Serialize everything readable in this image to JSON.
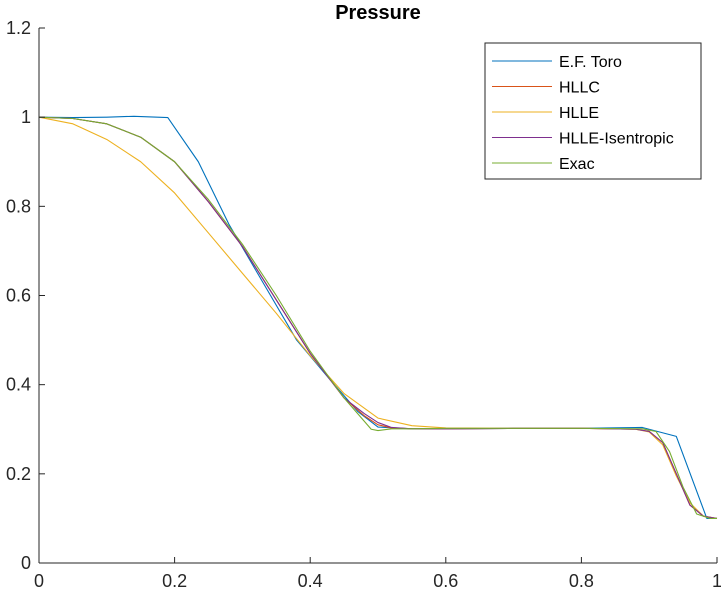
{
  "chart_data": {
    "type": "line",
    "title": "Pressure",
    "xlabel": "",
    "ylabel": "",
    "xlim": [
      0,
      1
    ],
    "ylim": [
      0,
      1.2
    ],
    "xticks": [
      0,
      0.2,
      0.4,
      0.6,
      0.8,
      1
    ],
    "xtick_labels": [
      "0",
      "0.2",
      "0.4",
      "0.6",
      "0.8",
      "1"
    ],
    "yticks": [
      0,
      0.2,
      0.4,
      0.6,
      0.8,
      1,
      1.2
    ],
    "ytick_labels": [
      "0",
      "0.2",
      "0.4",
      "0.6",
      "0.8",
      "1",
      "1.2"
    ],
    "grid": false,
    "legend_position": "top-right",
    "series": [
      {
        "name": "E.F. Toro",
        "color": "#0072BD",
        "x": [
          0,
          0.05,
          0.1,
          0.14,
          0.19,
          0.235,
          0.28,
          0.33,
          0.38,
          0.43,
          0.47,
          0.5,
          0.55,
          0.6,
          0.7,
          0.8,
          0.89,
          0.94,
          0.985,
          1.0
        ],
        "y": [
          1.0,
          0.999,
          1.0,
          1.002,
          0.999,
          0.9,
          0.76,
          0.63,
          0.5,
          0.41,
          0.34,
          0.305,
          0.301,
          0.301,
          0.302,
          0.302,
          0.304,
          0.284,
          0.1,
          0.1
        ]
      },
      {
        "name": "HLLC",
        "color": "#D95319",
        "x": [
          0,
          0.05,
          0.1,
          0.15,
          0.2,
          0.25,
          0.3,
          0.35,
          0.4,
          0.45,
          0.48,
          0.5,
          0.52,
          0.55,
          0.6,
          0.7,
          0.8,
          0.88,
          0.9,
          0.92,
          0.94,
          0.96,
          0.98,
          1.0
        ],
        "y": [
          1.0,
          0.997,
          0.985,
          0.955,
          0.9,
          0.81,
          0.71,
          0.59,
          0.47,
          0.37,
          0.33,
          0.31,
          0.303,
          0.301,
          0.301,
          0.302,
          0.302,
          0.3,
          0.295,
          0.27,
          0.2,
          0.13,
          0.105,
          0.1
        ]
      },
      {
        "name": "HLLE",
        "color": "#EDB120",
        "x": [
          0,
          0.05,
          0.1,
          0.15,
          0.2,
          0.25,
          0.3,
          0.35,
          0.4,
          0.45,
          0.5,
          0.55,
          0.6,
          0.7,
          0.8,
          0.88,
          0.9,
          0.92,
          0.94,
          0.96,
          0.98,
          1.0
        ],
        "y": [
          1.0,
          0.985,
          0.95,
          0.9,
          0.83,
          0.74,
          0.65,
          0.56,
          0.465,
          0.38,
          0.325,
          0.308,
          0.303,
          0.302,
          0.302,
          0.3,
          0.294,
          0.265,
          0.195,
          0.135,
          0.105,
          0.1
        ]
      },
      {
        "name": "HLLE-Isentropic",
        "color": "#7E2F8E",
        "x": [
          0,
          0.05,
          0.1,
          0.15,
          0.2,
          0.25,
          0.3,
          0.35,
          0.4,
          0.45,
          0.48,
          0.5,
          0.52,
          0.55,
          0.6,
          0.7,
          0.8,
          0.88,
          0.9,
          0.92,
          0.94,
          0.96,
          0.98,
          1.0
        ],
        "y": [
          1.0,
          0.997,
          0.985,
          0.955,
          0.9,
          0.81,
          0.71,
          0.59,
          0.47,
          0.37,
          0.335,
          0.315,
          0.304,
          0.301,
          0.301,
          0.302,
          0.302,
          0.3,
          0.295,
          0.27,
          0.2,
          0.13,
          0.105,
          0.1
        ]
      },
      {
        "name": "Exac",
        "color": "#77AC30",
        "x": [
          0,
          0.05,
          0.1,
          0.15,
          0.2,
          0.25,
          0.3,
          0.35,
          0.4,
          0.45,
          0.49,
          0.5,
          0.52,
          0.55,
          0.6,
          0.7,
          0.8,
          0.89,
          0.91,
          0.93,
          0.95,
          0.97,
          0.99,
          1.0
        ],
        "y": [
          1.0,
          0.997,
          0.985,
          0.955,
          0.9,
          0.815,
          0.715,
          0.6,
          0.475,
          0.37,
          0.3,
          0.297,
          0.301,
          0.301,
          0.302,
          0.302,
          0.302,
          0.301,
          0.295,
          0.25,
          0.17,
          0.11,
          0.1,
          0.1
        ]
      }
    ]
  }
}
